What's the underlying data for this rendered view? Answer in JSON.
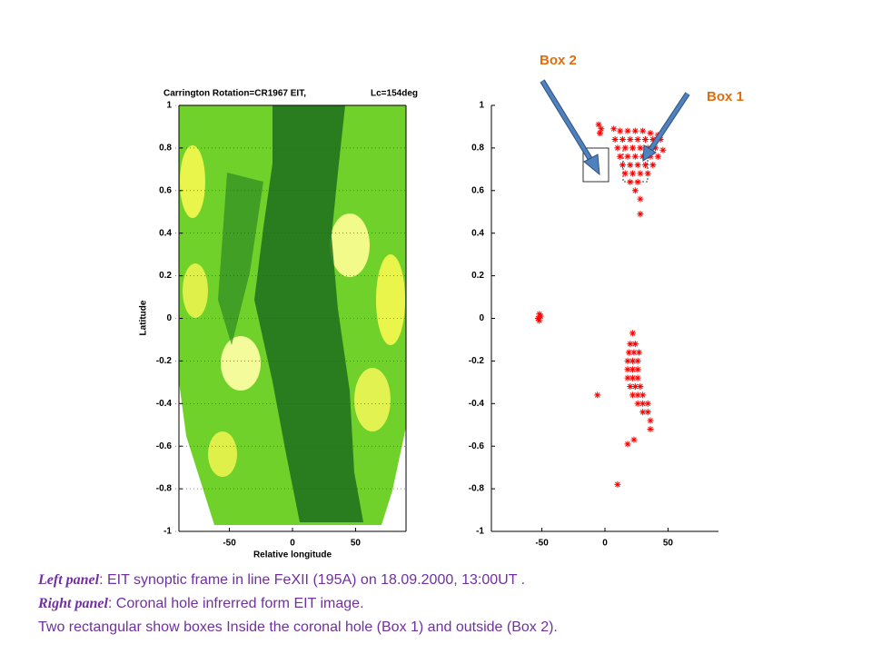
{
  "chart_data": [
    {
      "type": "image",
      "title": "Carrington Rotation=CR1967 EIT,",
      "annotation": "Lc=154deg",
      "xlabel": "Relative longitude",
      "ylabel": "Latitude",
      "xlim": [
        -90,
        90
      ],
      "ylim": [
        -1,
        1
      ],
      "xticks": [
        -50,
        0,
        50
      ],
      "yticks": [
        1,
        0.8,
        0.6,
        0.4,
        0.2,
        0,
        -0.2,
        -0.4,
        -0.6,
        -0.8,
        -1
      ],
      "grid": true
    },
    {
      "type": "scatter",
      "color": "#ff0000",
      "x": [
        -5,
        -3,
        -4,
        7,
        12,
        18,
        24,
        30,
        36,
        42,
        8,
        14,
        20,
        26,
        32,
        38,
        44,
        10,
        16,
        22,
        28,
        34,
        40,
        46,
        12,
        18,
        24,
        30,
        36,
        42,
        14,
        20,
        26,
        32,
        38,
        16,
        22,
        28,
        34,
        20,
        26,
        24,
        28,
        28,
        -52,
        -51,
        -53,
        -52,
        22,
        20,
        24,
        19,
        23,
        27,
        18,
        22,
        26,
        18,
        22,
        26,
        18,
        22,
        26,
        20,
        24,
        28,
        22,
        26,
        30,
        26,
        30,
        34,
        30,
        34,
        36,
        36,
        -6,
        18,
        23,
        10
      ],
      "y": [
        0.91,
        0.89,
        0.87,
        0.89,
        0.88,
        0.88,
        0.88,
        0.88,
        0.87,
        0.86,
        0.84,
        0.84,
        0.84,
        0.84,
        0.84,
        0.84,
        0.84,
        0.8,
        0.8,
        0.8,
        0.8,
        0.8,
        0.8,
        0.79,
        0.76,
        0.76,
        0.76,
        0.76,
        0.76,
        0.76,
        0.72,
        0.72,
        0.72,
        0.72,
        0.72,
        0.68,
        0.68,
        0.68,
        0.68,
        0.64,
        0.64,
        0.6,
        0.56,
        0.49,
        0.02,
        0.01,
        0,
        -0.01,
        -0.07,
        -0.12,
        -0.12,
        -0.16,
        -0.16,
        -0.16,
        -0.2,
        -0.2,
        -0.2,
        -0.24,
        -0.24,
        -0.24,
        -0.28,
        -0.28,
        -0.28,
        -0.32,
        -0.32,
        -0.32,
        -0.36,
        -0.36,
        -0.36,
        -0.4,
        -0.4,
        -0.4,
        -0.44,
        -0.44,
        -0.48,
        -0.52,
        -0.36,
        -0.59,
        -0.57,
        -0.78
      ],
      "xlim": [
        -90,
        90
      ],
      "ylim": [
        -1,
        1
      ],
      "xticks": [
        -50,
        0,
        50
      ],
      "yticks": [
        1,
        0.8,
        0.6,
        0.4,
        0.2,
        0,
        -0.2,
        -0.4,
        -0.6,
        -0.8,
        -1
      ]
    }
  ],
  "annotations": {
    "box1": "Box 1",
    "box2": "Box 2"
  },
  "caption": {
    "line1_label": "Left panel",
    "line1_text": ": EIT synoptic frame in line FeXII (195A) on 18.09.2000, 13:00UT .",
    "line2_label": "Right panel",
    "line2_text": ": Coronal hole infrerred form EIT image.",
    "line3_text": "Two rectangular show boxes Inside the coronal hole (Box 1) and outside (Box 2)."
  }
}
